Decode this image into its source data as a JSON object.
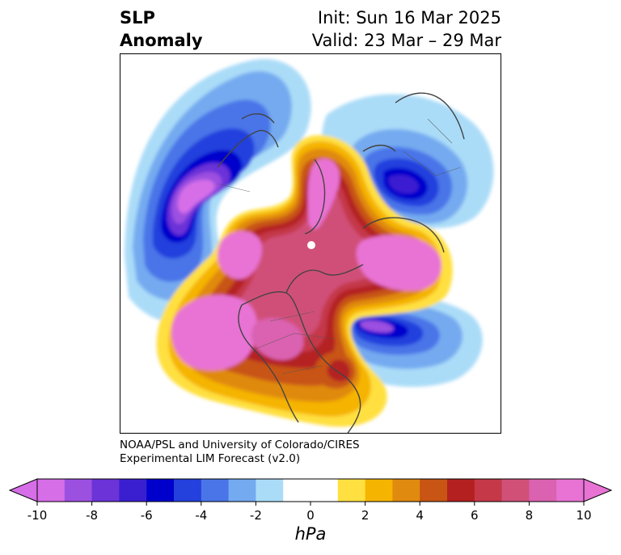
{
  "header": {
    "title_line1": "SLP",
    "title_line2": "Anomaly",
    "init": "Init: Sun 16 Mar 2025",
    "valid": "Valid: 23 Mar – 29 Mar"
  },
  "credit": {
    "line1": "NOAA/PSL and University of Colorado/CIRES",
    "line2": "Experimental LIM Forecast (v2.0)"
  },
  "colorbar": {
    "unit": "hPa",
    "ticks": [
      "-10",
      "-8",
      "-6",
      "-4",
      "-2",
      "0",
      "2",
      "4",
      "6",
      "8",
      "10"
    ],
    "levels": [
      -10,
      -9,
      -8,
      -7,
      -6,
      -5,
      -4,
      -3,
      -2,
      -1,
      1,
      2,
      3,
      4,
      5,
      6,
      7,
      8,
      9,
      10
    ],
    "colors": [
      "#d66ee8",
      "#9c50e0",
      "#6b33d8",
      "#3a1fd0",
      "#0000cc",
      "#2440dd",
      "#4a75e8",
      "#74aaf0",
      "#aadcf8",
      "#ffffff",
      "#ffe040",
      "#f5b400",
      "#e08a10",
      "#c85514",
      "#b42020",
      "#c43848",
      "#d05078",
      "#da62b0",
      "#e873d4"
    ],
    "extend_low_color": "#d66ee8",
    "extend_high_color": "#e873d4"
  },
  "map": {
    "projection": "north-polar-stereographic",
    "variable": "sea level pressure anomaly"
  }
}
